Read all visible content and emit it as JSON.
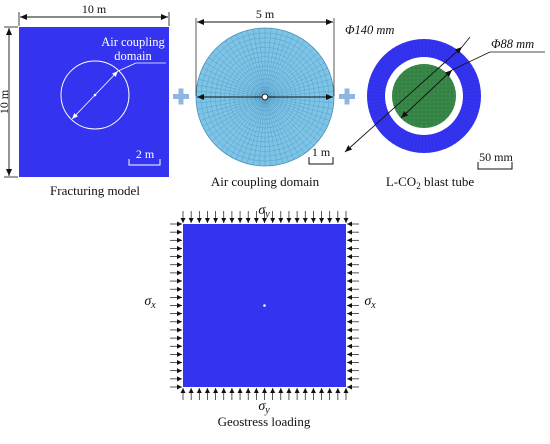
{
  "panel_fracturing": {
    "width_label": "10 m",
    "height_label": "10 m",
    "inner_label_line1": "Air coupling",
    "inner_label_line2": "domain",
    "scale_label": "2 m",
    "caption": "Fracturing model",
    "fill_color": "#3333f0"
  },
  "panel_air": {
    "diameter_label": "5 m",
    "scale_label": "1 m",
    "caption": "Air coupling domain",
    "fill_color": "#7ec4e6"
  },
  "panel_tube": {
    "outer_label": "Φ140 mm",
    "inner_label": "Φ88 mm",
    "scale_label": "50 mm",
    "caption_prefix": "L-CO",
    "caption_sub": "2",
    "caption_suffix": " blast tube",
    "ring_color": "#3333f0",
    "core_color": "#3a8a4a"
  },
  "panel_geostress": {
    "sigma_top": "σ",
    "sigma_top_sub": "y",
    "sigma_bottom": "σ",
    "sigma_bottom_sub": "y",
    "sigma_left": "σ",
    "sigma_left_sub": "x",
    "sigma_right": "σ",
    "sigma_right_sub": "x",
    "caption": "Geostress loading",
    "fill_color": "#3333f0"
  },
  "plus_color": "#8fb6e2"
}
